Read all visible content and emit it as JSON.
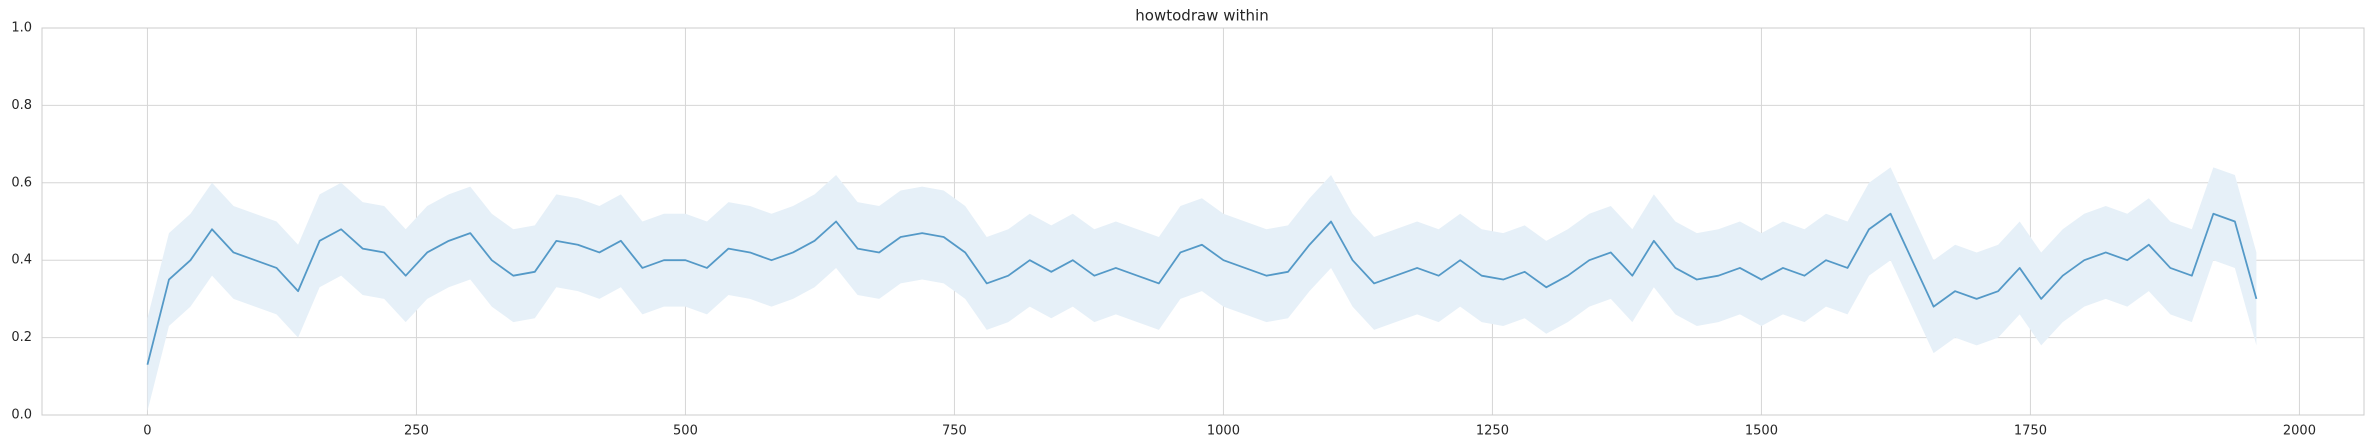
{
  "chart_data": {
    "type": "line",
    "title": "howtodraw within",
    "x": [
      0,
      20,
      40,
      60,
      80,
      100,
      120,
      140,
      160,
      180,
      200,
      220,
      240,
      260,
      280,
      300,
      320,
      340,
      360,
      380,
      400,
      420,
      440,
      460,
      480,
      500,
      520,
      540,
      560,
      580,
      600,
      620,
      640,
      660,
      680,
      700,
      720,
      740,
      760,
      780,
      800,
      820,
      840,
      860,
      880,
      900,
      920,
      940,
      960,
      980,
      1000,
      1020,
      1040,
      1060,
      1080,
      1100,
      1120,
      1140,
      1160,
      1180,
      1200,
      1220,
      1240,
      1260,
      1280,
      1300,
      1320,
      1340,
      1360,
      1380,
      1400,
      1420,
      1440,
      1460,
      1480,
      1500,
      1520,
      1540,
      1560,
      1580,
      1600,
      1620,
      1640,
      1660,
      1680,
      1700,
      1720,
      1740,
      1760,
      1780,
      1800,
      1820,
      1840,
      1860,
      1880,
      1900,
      1920,
      1940,
      1960
    ],
    "values": [
      0.13,
      0.35,
      0.4,
      0.48,
      0.42,
      0.4,
      0.38,
      0.32,
      0.45,
      0.48,
      0.43,
      0.42,
      0.36,
      0.42,
      0.45,
      0.47,
      0.4,
      0.36,
      0.37,
      0.45,
      0.44,
      0.42,
      0.45,
      0.38,
      0.4,
      0.4,
      0.38,
      0.43,
      0.42,
      0.4,
      0.42,
      0.45,
      0.5,
      0.43,
      0.42,
      0.46,
      0.47,
      0.46,
      0.42,
      0.34,
      0.36,
      0.4,
      0.37,
      0.4,
      0.36,
      0.38,
      0.36,
      0.34,
      0.42,
      0.44,
      0.4,
      0.38,
      0.36,
      0.37,
      0.44,
      0.5,
      0.4,
      0.34,
      0.36,
      0.38,
      0.36,
      0.4,
      0.36,
      0.35,
      0.37,
      0.33,
      0.36,
      0.4,
      0.42,
      0.36,
      0.45,
      0.38,
      0.35,
      0.36,
      0.38,
      0.35,
      0.38,
      0.36,
      0.4,
      0.38,
      0.48,
      0.52,
      0.4,
      0.28,
      0.32,
      0.3,
      0.32,
      0.38,
      0.3,
      0.36,
      0.4,
      0.42,
      0.4,
      0.44,
      0.38,
      0.36,
      0.52,
      0.5,
      0.3
    ],
    "lower": [
      0.01,
      0.23,
      0.28,
      0.36,
      0.3,
      0.28,
      0.26,
      0.2,
      0.33,
      0.36,
      0.31,
      0.3,
      0.24,
      0.3,
      0.33,
      0.35,
      0.28,
      0.24,
      0.25,
      0.33,
      0.32,
      0.3,
      0.33,
      0.26,
      0.28,
      0.28,
      0.26,
      0.31,
      0.3,
      0.28,
      0.3,
      0.33,
      0.38,
      0.31,
      0.3,
      0.34,
      0.35,
      0.34,
      0.3,
      0.22,
      0.24,
      0.28,
      0.25,
      0.28,
      0.24,
      0.26,
      0.24,
      0.22,
      0.3,
      0.32,
      0.28,
      0.26,
      0.24,
      0.25,
      0.32,
      0.38,
      0.28,
      0.22,
      0.24,
      0.26,
      0.24,
      0.28,
      0.24,
      0.23,
      0.25,
      0.21,
      0.24,
      0.28,
      0.3,
      0.24,
      0.33,
      0.26,
      0.23,
      0.24,
      0.26,
      0.23,
      0.26,
      0.24,
      0.28,
      0.26,
      0.36,
      0.4,
      0.28,
      0.16,
      0.2,
      0.18,
      0.2,
      0.26,
      0.18,
      0.24,
      0.28,
      0.3,
      0.28,
      0.32,
      0.26,
      0.24,
      0.4,
      0.38,
      0.18
    ],
    "upper": [
      0.25,
      0.47,
      0.52,
      0.6,
      0.54,
      0.52,
      0.5,
      0.44,
      0.57,
      0.6,
      0.55,
      0.54,
      0.48,
      0.54,
      0.57,
      0.59,
      0.52,
      0.48,
      0.49,
      0.57,
      0.56,
      0.54,
      0.57,
      0.5,
      0.52,
      0.52,
      0.5,
      0.55,
      0.54,
      0.52,
      0.54,
      0.57,
      0.62,
      0.55,
      0.54,
      0.58,
      0.59,
      0.58,
      0.54,
      0.46,
      0.48,
      0.52,
      0.49,
      0.52,
      0.48,
      0.5,
      0.48,
      0.46,
      0.54,
      0.56,
      0.52,
      0.5,
      0.48,
      0.49,
      0.56,
      0.62,
      0.52,
      0.46,
      0.48,
      0.5,
      0.48,
      0.52,
      0.48,
      0.47,
      0.49,
      0.45,
      0.48,
      0.52,
      0.54,
      0.48,
      0.57,
      0.5,
      0.47,
      0.48,
      0.5,
      0.47,
      0.5,
      0.48,
      0.52,
      0.5,
      0.6,
      0.64,
      0.52,
      0.4,
      0.44,
      0.42,
      0.44,
      0.5,
      0.42,
      0.48,
      0.52,
      0.54,
      0.52,
      0.56,
      0.5,
      0.48,
      0.64,
      0.62,
      0.42
    ],
    "color": "#5499c7",
    "band_color": "#e6f0f8",
    "xlim": [
      -98,
      2060
    ],
    "ylim": [
      0,
      1
    ],
    "xticks": [
      0,
      250,
      500,
      750,
      1000,
      1250,
      1500,
      1750,
      2000
    ],
    "yticks": [
      {
        "value": 0,
        "label": "0.0"
      },
      {
        "value": 0.2,
        "label": "0.2"
      },
      {
        "value": 0.4,
        "label": "0.4"
      },
      {
        "value": 0.6,
        "label": "0.6"
      },
      {
        "value": 0.8,
        "label": "0.8"
      },
      {
        "value": 1,
        "label": "1.0"
      }
    ],
    "grid": true
  }
}
